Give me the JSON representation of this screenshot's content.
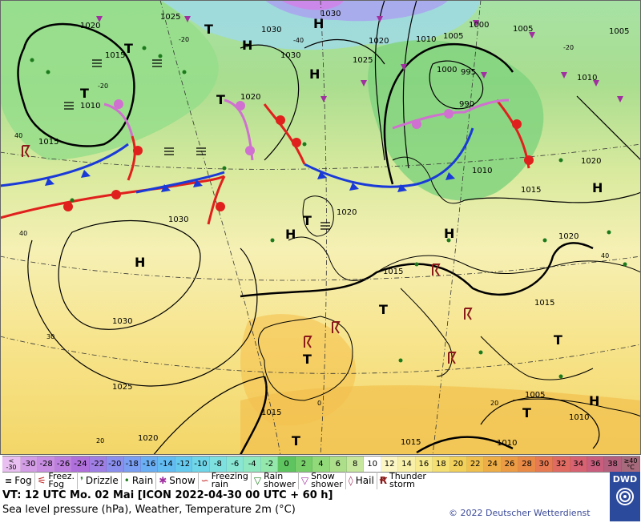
{
  "map": {
    "pressure_labels": [
      "1025",
      "1020",
      "1015",
      "1010",
      "1000",
      "995",
      "990",
      "1005",
      "1030"
    ],
    "pressure_centers": [
      "H",
      "T"
    ],
    "temp_labels": [
      "40",
      "30",
      "20",
      "0",
      "-20",
      "-40"
    ]
  },
  "color_scale": {
    "low_end": [
      "<",
      "-30"
    ],
    "high_end": [
      "≥40",
      "°C"
    ],
    "cells": [
      {
        "label": "-30",
        "color": "#d49ee6"
      },
      {
        "label": "-28",
        "color": "#c98ee2"
      },
      {
        "label": "-26",
        "color": "#bd7fde"
      },
      {
        "label": "-24",
        "color": "#b070db"
      },
      {
        "label": "-22",
        "color": "#a07fe4"
      },
      {
        "label": "-20",
        "color": "#8a8fee"
      },
      {
        "label": "-18",
        "color": "#7a9ff2"
      },
      {
        "label": "-16",
        "color": "#6aaef4"
      },
      {
        "label": "-14",
        "color": "#63bdf3"
      },
      {
        "label": "-12",
        "color": "#66caef"
      },
      {
        "label": "-10",
        "color": "#6fd6ea"
      },
      {
        "label": "-8",
        "color": "#7fe0e0"
      },
      {
        "label": "-6",
        "color": "#88e6d2"
      },
      {
        "label": "-4",
        "color": "#8fe8c0"
      },
      {
        "label": "-2",
        "color": "#94e8ab"
      },
      {
        "label": "0",
        "color": "#5ec45f"
      },
      {
        "label": "2",
        "color": "#78cf6a"
      },
      {
        "label": "4",
        "color": "#92d97a"
      },
      {
        "label": "6",
        "color": "#addf8b"
      },
      {
        "label": "8",
        "color": "#c8e79e"
      },
      {
        "label": "10",
        "color": "#ffffff"
      },
      {
        "label": "12",
        "color": "#fbf6c4"
      },
      {
        "label": "14",
        "color": "#f8f0a8"
      },
      {
        "label": "16",
        "color": "#f6e98e"
      },
      {
        "label": "18",
        "color": "#f4df72"
      },
      {
        "label": "20",
        "color": "#f2d15b"
      },
      {
        "label": "22",
        "color": "#f0c04e"
      },
      {
        "label": "24",
        "color": "#eeae47"
      },
      {
        "label": "26",
        "color": "#ec9c44"
      },
      {
        "label": "28",
        "color": "#e98a47"
      },
      {
        "label": "30",
        "color": "#e67a52"
      },
      {
        "label": "32",
        "color": "#e06b62"
      },
      {
        "label": "34",
        "color": "#d66272"
      },
      {
        "label": "36",
        "color": "#c85d7e"
      },
      {
        "label": "38",
        "color": "#b35f7e"
      }
    ]
  },
  "legend": {
    "fog": "Fog",
    "freez_fog": "Freez.\nFog",
    "drizzle": "Drizzle",
    "rain": "Rain",
    "snow": "Snow",
    "freezing_rain": "Freezing\nrain",
    "rain_shower": "Rain\nshower",
    "snow_shower": "Snow\nshower",
    "hail": "Hail",
    "thunderstorm": "Thunder\nstorm"
  },
  "info_line": "VT: 12 UTC Mo.  02 Mai [ICON 2022-04-30  00 UTC + 60 h]",
  "subtitle": "Sea level pressure (hPa), Weather, Temperature 2m (°C)",
  "copyright": "© 2022 Deutscher Wetterdienst",
  "logo_text": "DWD",
  "colors": {
    "cold_front": "#1a3ad8",
    "warm_front": "#e0201c",
    "occlusion": "#d070d0",
    "isobar": "#000000"
  }
}
